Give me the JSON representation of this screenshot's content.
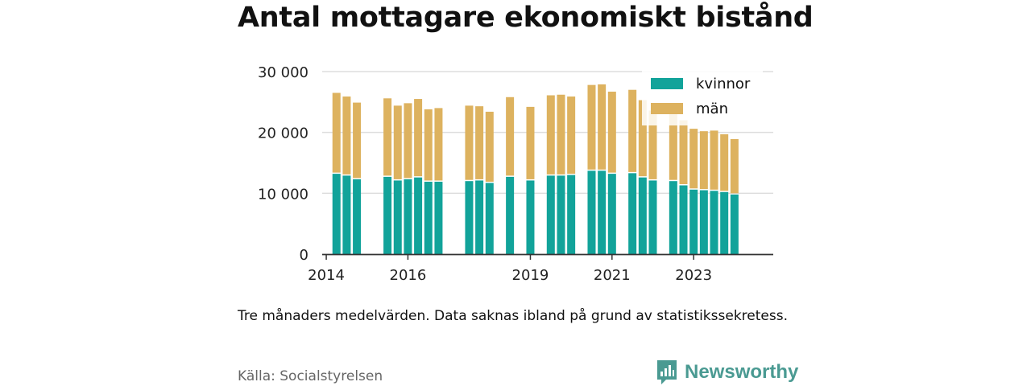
{
  "title": "Antal mottagare ekonomiskt bistånd",
  "note": "Tre månaders medelvärden. Data saknas ibland på grund av statistikssekretess.",
  "source": "Källa: Socialstyrelsen",
  "brand": {
    "name": "Newsworthy",
    "icon": "newsworthy-logo-icon",
    "color": "#4a9a92"
  },
  "chart_data": {
    "type": "bar",
    "stacked": true,
    "ylim": [
      0,
      30000
    ],
    "yticks": [
      0,
      10000,
      20000,
      30000
    ],
    "ytick_labels": [
      "0",
      "10 000",
      "20 000",
      "30 000"
    ],
    "xticks": [
      2014,
      2016,
      2019,
      2021,
      2023
    ],
    "xtick_labels": [
      "2014",
      "2016",
      "2019",
      "2021",
      "2023"
    ],
    "xlim": [
      2013.9,
      2024.95
    ],
    "grid": true,
    "legend_position": "top-right",
    "x": [
      2014.25,
      2014.5,
      2014.75,
      2015.5,
      2015.75,
      2016.0,
      2016.25,
      2016.5,
      2016.75,
      2017.5,
      2017.75,
      2018.0,
      2018.5,
      2019.0,
      2019.5,
      2019.75,
      2020.0,
      2020.5,
      2020.75,
      2021.0,
      2021.5,
      2021.75,
      2022.0,
      2022.5,
      2022.75,
      2023.0,
      2023.25,
      2023.5,
      2023.75,
      2024.0
    ],
    "series": [
      {
        "name": "kvinnor",
        "color": "#12a39a",
        "values": [
          13200,
          12900,
          12300,
          12700,
          12100,
          12300,
          12600,
          11900,
          11900,
          12000,
          12100,
          11700,
          12700,
          12100,
          12900,
          12900,
          13000,
          13700,
          13700,
          13200,
          13300,
          12600,
          12100,
          12000,
          11300,
          10600,
          10500,
          10400,
          10200,
          9800
        ]
      },
      {
        "name": "män",
        "color": "#ddb25f",
        "values": [
          13300,
          13000,
          12600,
          12900,
          12300,
          12500,
          12900,
          11900,
          12100,
          12400,
          12200,
          11700,
          13100,
          12100,
          13200,
          13300,
          12900,
          14100,
          14200,
          13500,
          13700,
          12700,
          11500,
          11500,
          10700,
          10000,
          9700,
          9900,
          9500,
          9100
        ]
      }
    ]
  }
}
